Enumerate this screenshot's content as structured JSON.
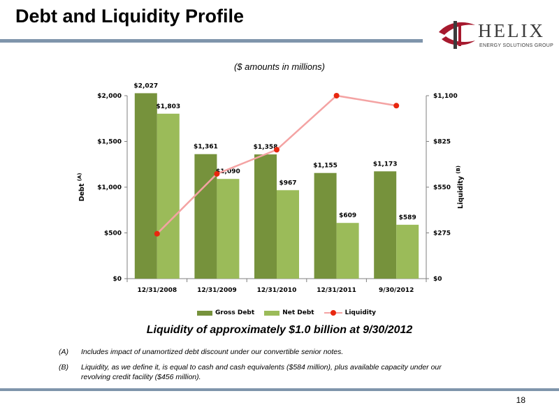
{
  "header": {
    "title": "Debt and Liquidity Profile",
    "logo_word": "HELIX",
    "logo_tagline": "ENERGY SOLUTIONS GROUP"
  },
  "subtitle": "($ amounts in millions)",
  "chart_data": {
    "type": "bar",
    "categories": [
      "12/31/2008",
      "12/31/2009",
      "12/31/2010",
      "12/31/2011",
      "9/30/2012"
    ],
    "series": [
      {
        "name": "Gross Debt",
        "type": "bar",
        "axis": "left",
        "color": "#76923c",
        "values": [
          2027,
          1361,
          1358,
          1155,
          1173
        ],
        "labels": [
          "$2,027",
          "$1,361",
          "$1,358",
          "$1,155",
          "$1,173"
        ]
      },
      {
        "name": "Net Debt",
        "type": "bar",
        "axis": "left",
        "color": "#9bbb59",
        "values": [
          1803,
          1090,
          967,
          609,
          589
        ],
        "labels": [
          "$1,803",
          "$1,090",
          "$967",
          "$609",
          "$589"
        ]
      },
      {
        "name": "Liquidity",
        "type": "line",
        "axis": "right",
        "color": "#f4a3a3",
        "marker_color": "#e8270f",
        "values": [
          270,
          630,
          775,
          1100,
          1040
        ]
      }
    ],
    "y_left": {
      "label": "Debt",
      "superscript": "(A)",
      "ylim": [
        0,
        2000
      ],
      "ticks": [
        0,
        500,
        1000,
        1500,
        2000
      ],
      "tick_labels": [
        "$0",
        "$500",
        "$1,000",
        "$1,500",
        "$2,000"
      ]
    },
    "y_right": {
      "label": "Liquidity",
      "superscript": "(B)",
      "ylim": [
        0,
        1100
      ],
      "ticks": [
        0,
        275,
        550,
        825,
        1100
      ],
      "tick_labels": [
        "$0",
        "$275",
        "$550",
        "$825",
        "$1,100"
      ]
    },
    "grid": false,
    "legend_position": "bottom"
  },
  "callout": "Liquidity of approximately $1.0 billion at 9/30/2012",
  "footnotes": [
    {
      "marker": "(A)",
      "text": "Includes impact of unamortized debt discount under our convertible senior notes."
    },
    {
      "marker": "(B)",
      "text": "Liquidity, as we define it, is equal to cash and cash equivalents ($584 million), plus available capacity under our revolving credit facility ($456 million)."
    }
  ],
  "page_number": "18"
}
